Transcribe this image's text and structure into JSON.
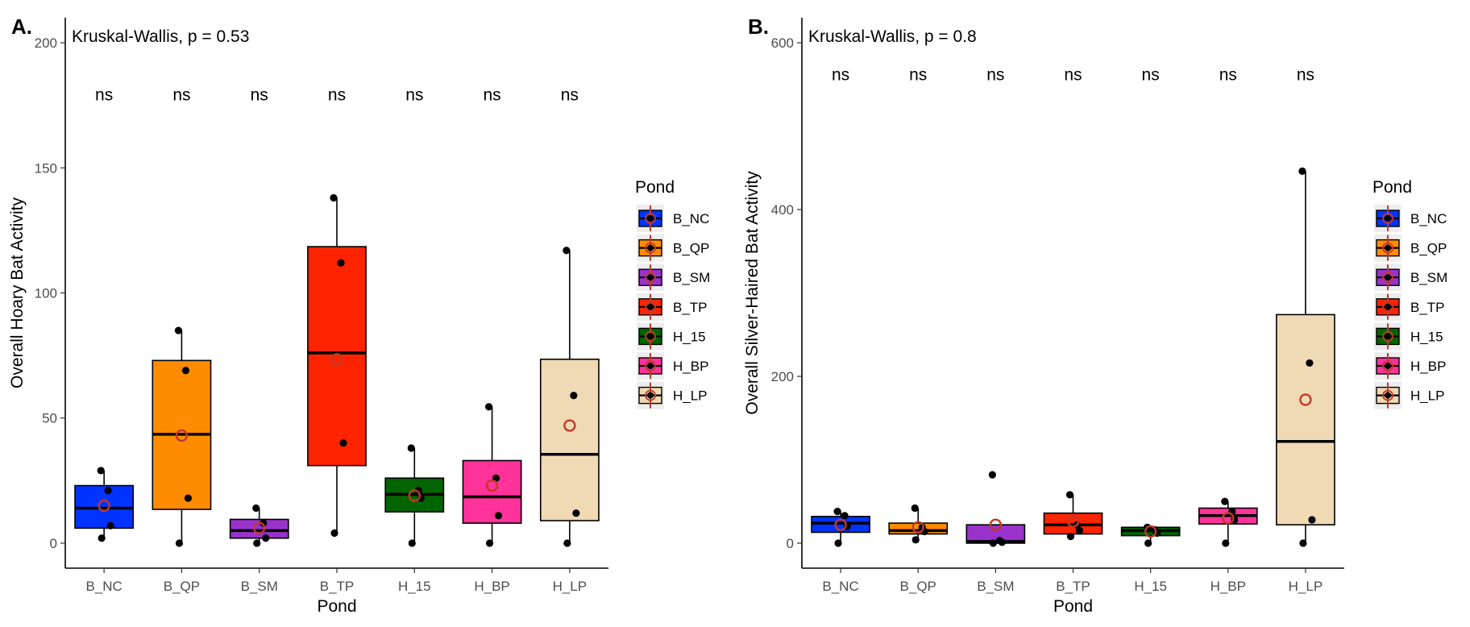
{
  "chart_data": [
    {
      "type": "box",
      "panel_label": "A.",
      "annotation": "Kruskal-Wallis, p = 0.53",
      "xlabel": "Pond",
      "ylabel": "Overall Hoary Bat Activity",
      "ylim": [
        -10,
        210
      ],
      "yticks": [
        0,
        50,
        100,
        150,
        200
      ],
      "categories": [
        "B_NC",
        "B_QP",
        "B_SM",
        "B_TP",
        "H_15",
        "H_BP",
        "H_LP"
      ],
      "sig_labels": [
        "ns",
        "ns",
        "ns",
        "ns",
        "ns",
        "ns",
        "ns"
      ],
      "sig_y": 177,
      "boxes": [
        {
          "min": 2,
          "q1": 6,
          "median": 14,
          "q3": 23,
          "max": 29,
          "mean": 15,
          "points": [
            29,
            21,
            7,
            2
          ]
        },
        {
          "min": 0,
          "q1": 13.5,
          "median": 43.5,
          "q3": 73,
          "max": 85,
          "mean": 43,
          "points": [
            85,
            69,
            18,
            0
          ]
        },
        {
          "min": 0,
          "q1": 2,
          "median": 5,
          "q3": 9.5,
          "max": 14,
          "mean": 6,
          "points": [
            14,
            8,
            2,
            0
          ]
        },
        {
          "min": 4,
          "q1": 31,
          "median": 76,
          "q3": 118.5,
          "max": 138,
          "mean": 73.5,
          "points": [
            138,
            112,
            40,
            4
          ]
        },
        {
          "min": 0,
          "q1": 12.5,
          "median": 19.5,
          "q3": 26,
          "max": 38,
          "mean": 19,
          "points": [
            38,
            21,
            18,
            0
          ]
        },
        {
          "min": 0,
          "q1": 8,
          "median": 18.5,
          "q3": 33,
          "max": 54.5,
          "mean": 23,
          "points": [
            54.5,
            26,
            11,
            0
          ]
        },
        {
          "min": 0,
          "q1": 9,
          "median": 35.5,
          "q3": 73.5,
          "max": 117,
          "mean": 47,
          "points": [
            117,
            59,
            12,
            0
          ]
        }
      ]
    },
    {
      "type": "box",
      "panel_label": "B.",
      "annotation": "Kruskal-Wallis, p = 0.8",
      "xlabel": "Pond",
      "ylabel": "Overall Silver-Haired Bat Activity",
      "ylim": [
        -30,
        630
      ],
      "yticks": [
        0,
        200,
        400,
        600
      ],
      "categories": [
        "B_NC",
        "B_QP",
        "B_SM",
        "B_TP",
        "H_15",
        "H_BP",
        "H_LP"
      ],
      "sig_labels": [
        "ns",
        "ns",
        "ns",
        "ns",
        "ns",
        "ns",
        "ns"
      ],
      "sig_y": 555,
      "boxes": [
        {
          "min": 0,
          "q1": 13,
          "median": 24,
          "q3": 32,
          "max": 38,
          "mean": 22,
          "points": [
            38,
            33,
            20,
            0
          ]
        },
        {
          "min": 4,
          "q1": 11,
          "median": 15,
          "q3": 24,
          "max": 42,
          "mean": 19,
          "points": [
            42,
            19,
            14,
            4
          ]
        },
        {
          "min": 0,
          "q1": 0,
          "median": 2,
          "q3": 22,
          "max": 22,
          "mean": 22,
          "points": [
            82,
            3,
            1,
            0
          ]
        },
        {
          "min": 8,
          "q1": 11,
          "median": 22,
          "q3": 36,
          "max": 58,
          "mean": 26,
          "points": [
            58,
            22,
            15,
            8
          ]
        },
        {
          "min": 0,
          "q1": 9,
          "median": 15,
          "q3": 19,
          "max": 19,
          "mean": 14,
          "points": [
            19,
            16,
            12,
            0
          ]
        },
        {
          "min": 0,
          "q1": 23,
          "median": 33,
          "q3": 42,
          "max": 50,
          "mean": 30,
          "points": [
            50,
            38,
            28,
            0
          ]
        },
        {
          "min": 0,
          "q1": 22,
          "median": 122,
          "q3": 274,
          "max": 446,
          "mean": 172,
          "points": [
            446,
            216,
            28,
            0
          ]
        }
      ]
    }
  ],
  "legend": {
    "title": "Pond",
    "entries": [
      {
        "label": "B_NC",
        "color": "#0033FF"
      },
      {
        "label": "B_QP",
        "color": "#FF8C00"
      },
      {
        "label": "B_SM",
        "color": "#9932CC"
      },
      {
        "label": "B_TP",
        "color": "#FF2400"
      },
      {
        "label": "H_15",
        "color": "#006400"
      },
      {
        "label": "H_BP",
        "color": "#FF3399"
      },
      {
        "label": "H_LP",
        "color": "#F0D9B5"
      }
    ]
  },
  "mean_marker_color": "#C0392B"
}
